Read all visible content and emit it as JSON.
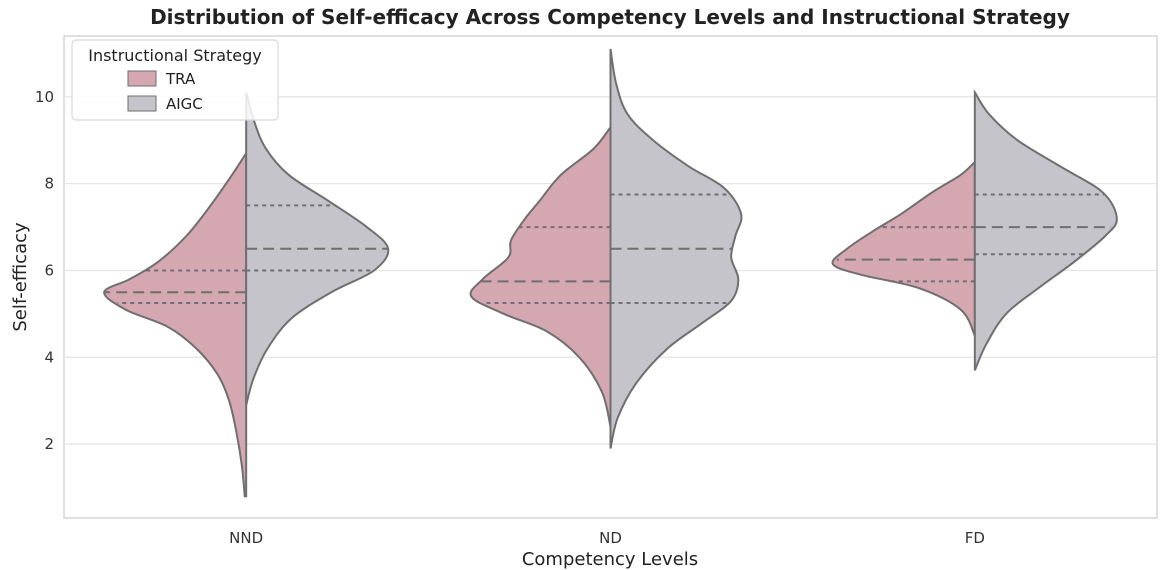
{
  "chart_data": {
    "type": "violin",
    "title": "Distribution of Self-efficacy Across Competency Levels and Instructional Strategy",
    "xlabel": "Competency Levels",
    "ylabel": "Self-efficacy",
    "categories": [
      "NND",
      "ND",
      "FD"
    ],
    "ylim": [
      0.3,
      11.4
    ],
    "yticks": [
      2,
      4,
      6,
      8,
      10
    ],
    "grid": true,
    "split": true,
    "inner": "quartile",
    "legend": {
      "title": "Instructional Strategy",
      "placement": "top-left",
      "entries": [
        "TRA",
        "AIGC"
      ]
    },
    "series": [
      {
        "name": "TRA",
        "color": "#d4a7b1",
        "groups": [
          {
            "category": "NND",
            "min": 0.8,
            "max": 8.7,
            "quartiles": [
              5.25,
              5.5,
              6.0
            ],
            "profile": [
              [
                0.8,
                0.01
              ],
              [
                1.5,
                0.03
              ],
              [
                2.3,
                0.07
              ],
              [
                3.0,
                0.12
              ],
              [
                3.6,
                0.2
              ],
              [
                4.2,
                0.35
              ],
              [
                4.7,
                0.55
              ],
              [
                5.1,
                0.85
              ],
              [
                5.5,
                1.0
              ],
              [
                5.8,
                0.82
              ],
              [
                6.2,
                0.62
              ],
              [
                6.8,
                0.42
              ],
              [
                7.5,
                0.25
              ],
              [
                8.2,
                0.1
              ],
              [
                8.7,
                0.0
              ]
            ]
          },
          {
            "category": "ND",
            "min": 2.4,
            "max": 9.3,
            "quartiles": [
              5.25,
              5.75,
              7.0
            ],
            "profile": [
              [
                2.4,
                0.0
              ],
              [
                3.2,
                0.06
              ],
              [
                4.0,
                0.22
              ],
              [
                4.6,
                0.45
              ],
              [
                5.0,
                0.75
              ],
              [
                5.4,
                0.98
              ],
              [
                5.8,
                0.9
              ],
              [
                6.3,
                0.72
              ],
              [
                6.7,
                0.7
              ],
              [
                7.2,
                0.6
              ],
              [
                7.6,
                0.5
              ],
              [
                8.2,
                0.35
              ],
              [
                8.8,
                0.12
              ],
              [
                9.3,
                0.0
              ]
            ]
          },
          {
            "category": "FD",
            "min": 4.5,
            "max": 8.5,
            "quartiles": [
              5.75,
              6.25,
              7.0
            ],
            "profile": [
              [
                4.5,
                0.0
              ],
              [
                5.1,
                0.1
              ],
              [
                5.6,
                0.4
              ],
              [
                5.9,
                0.8
              ],
              [
                6.15,
                1.0
              ],
              [
                6.5,
                0.9
              ],
              [
                6.9,
                0.72
              ],
              [
                7.3,
                0.52
              ],
              [
                7.8,
                0.3
              ],
              [
                8.2,
                0.1
              ],
              [
                8.5,
                0.0
              ]
            ]
          }
        ]
      },
      {
        "name": "AIGC",
        "color": "#c6c4cb",
        "groups": [
          {
            "category": "NND",
            "min": 2.9,
            "max": 10.1,
            "quartiles": [
              6.0,
              6.5,
              7.5
            ],
            "profile": [
              [
                2.9,
                0.0
              ],
              [
                3.5,
                0.05
              ],
              [
                4.2,
                0.15
              ],
              [
                4.9,
                0.32
              ],
              [
                5.5,
                0.6
              ],
              [
                6.0,
                0.9
              ],
              [
                6.5,
                1.0
              ],
              [
                7.0,
                0.85
              ],
              [
                7.6,
                0.58
              ],
              [
                8.2,
                0.3
              ],
              [
                8.8,
                0.14
              ],
              [
                9.4,
                0.06
              ],
              [
                10.1,
                0.0
              ]
            ]
          },
          {
            "category": "ND",
            "min": 1.9,
            "max": 11.1,
            "quartiles": [
              5.25,
              6.5,
              7.75
            ],
            "profile": [
              [
                1.9,
                0.0
              ],
              [
                2.6,
                0.05
              ],
              [
                3.4,
                0.18
              ],
              [
                4.2,
                0.4
              ],
              [
                4.8,
                0.65
              ],
              [
                5.3,
                0.85
              ],
              [
                5.8,
                0.9
              ],
              [
                6.3,
                0.85
              ],
              [
                6.8,
                0.88
              ],
              [
                7.3,
                0.92
              ],
              [
                7.9,
                0.8
              ],
              [
                8.4,
                0.55
              ],
              [
                9.0,
                0.3
              ],
              [
                9.6,
                0.12
              ],
              [
                10.3,
                0.04
              ],
              [
                11.1,
                0.0
              ]
            ]
          },
          {
            "category": "FD",
            "min": 3.7,
            "max": 10.1,
            "quartiles": [
              6.375,
              7.0,
              7.75
            ],
            "profile": [
              [
                3.7,
                0.0
              ],
              [
                4.3,
                0.08
              ],
              [
                5.0,
                0.22
              ],
              [
                5.6,
                0.45
              ],
              [
                6.2,
                0.7
              ],
              [
                6.8,
                0.92
              ],
              [
                7.2,
                1.0
              ],
              [
                7.8,
                0.9
              ],
              [
                8.4,
                0.6
              ],
              [
                9.0,
                0.3
              ],
              [
                9.6,
                0.1
              ],
              [
                10.1,
                0.0
              ]
            ]
          }
        ]
      }
    ]
  }
}
